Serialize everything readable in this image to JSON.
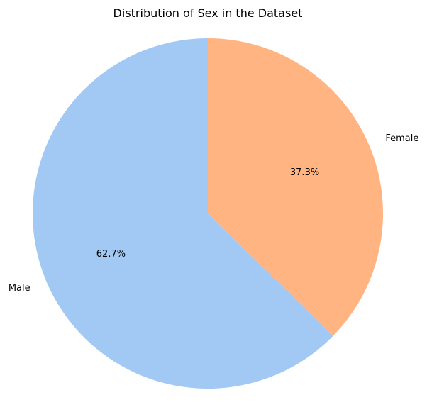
{
  "chart_data": {
    "type": "pie",
    "title": "Distribution of Sex in the Dataset",
    "categories": [
      "Male",
      "Female"
    ],
    "values": [
      62.7,
      37.3
    ],
    "percent_labels": [
      "62.7%",
      "37.3%"
    ],
    "colors": [
      "#a1c9f4",
      "#ffb482"
    ],
    "start_angle_deg": 90,
    "direction": "counterclockwise"
  }
}
